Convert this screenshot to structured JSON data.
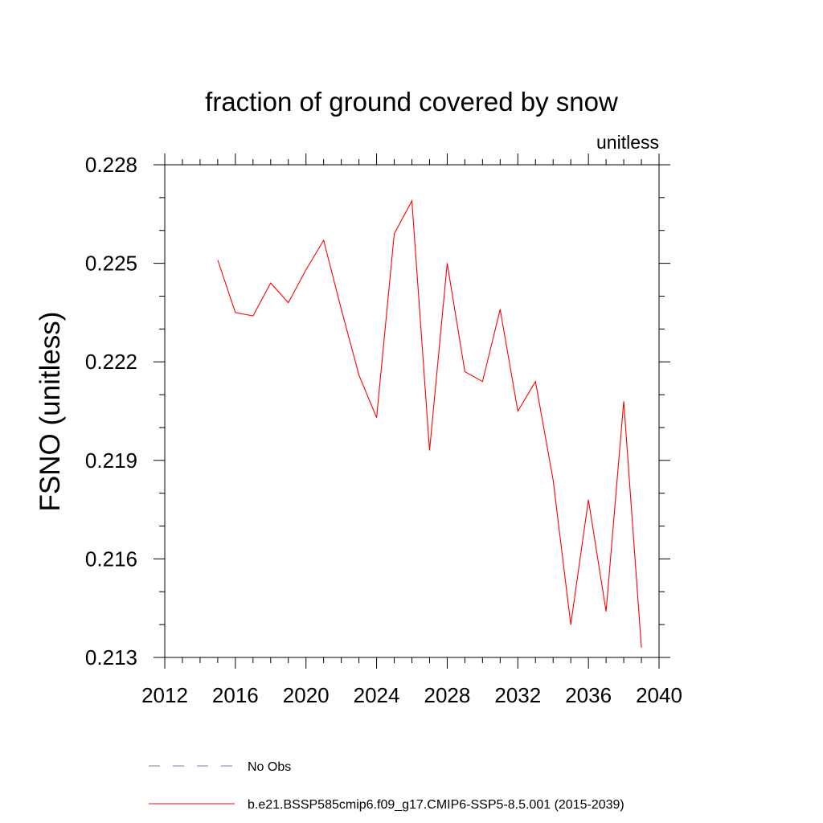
{
  "chart_data": {
    "type": "line",
    "title": "fraction of ground covered by snow",
    "units_label": "unitless",
    "xlabel": "",
    "ylabel": "FSNO  (unitless)",
    "xlim": [
      2012,
      2040
    ],
    "ylim": [
      0.213,
      0.228
    ],
    "x_ticks": [
      2012,
      2016,
      2020,
      2024,
      2028,
      2032,
      2036,
      2040
    ],
    "x_tick_labels": [
      "2012",
      "2016",
      "2020",
      "2024",
      "2028",
      "2032",
      "2036",
      "2040"
    ],
    "x_minor_step": 1,
    "y_ticks": [
      0.213,
      0.216,
      0.219,
      0.222,
      0.225,
      0.228
    ],
    "y_tick_labels": [
      "0.213",
      "0.216",
      "0.219",
      "0.222",
      "0.225",
      "0.228"
    ],
    "y_minor_step": 0.001,
    "grid": false,
    "series": [
      {
        "name": "b.e21.BSSP585cmip6.f09_g17.CMIP6-SSP5-8.5.001 (2015-2039)",
        "color": "#ff0000",
        "dash": "solid",
        "x": [
          2015,
          2016,
          2017,
          2018,
          2019,
          2020,
          2021,
          2022,
          2023,
          2024,
          2025,
          2026,
          2027,
          2028,
          2029,
          2030,
          2031,
          2032,
          2033,
          2034,
          2035,
          2036,
          2037,
          2038,
          2039
        ],
        "values": [
          0.2251,
          0.2235,
          0.2234,
          0.2244,
          0.2238,
          0.2248,
          0.2257,
          0.2236,
          0.2216,
          0.2203,
          0.2259,
          0.2269,
          0.2193,
          0.225,
          0.2217,
          0.2214,
          0.2236,
          0.2205,
          0.2214,
          0.2184,
          0.214,
          0.2178,
          0.2144,
          0.2208,
          0.2133
        ]
      }
    ],
    "legend": {
      "placement": "bottom",
      "entries": [
        {
          "label": "No Obs",
          "color": "#7b76c9",
          "dash": "dashed"
        },
        {
          "label": "b.e21.BSSP585cmip6.f09_g17.CMIP6-SSP5-8.5.001 (2015-2039)",
          "color": "#ff0000",
          "dash": "solid"
        }
      ]
    }
  }
}
